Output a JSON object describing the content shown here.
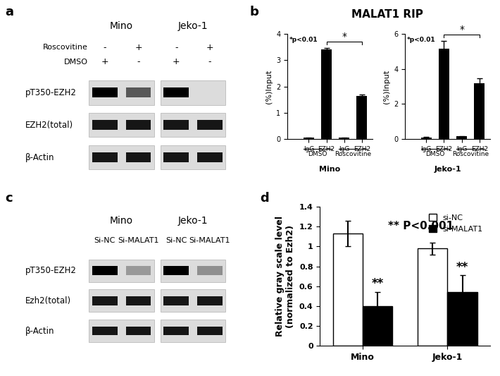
{
  "panel_labels": [
    "a",
    "b",
    "c",
    "d"
  ],
  "figure_title": "MALAT1 RIP",
  "blots": [
    {
      "groups": [
        {
          "name": "Mino"
        },
        {
          "name": "Jeko-1"
        }
      ],
      "conditions": [
        {
          "label": "Roscovitine",
          "marks": [
            [
              "-",
              "+"
            ],
            [
              "-",
              "+"
            ]
          ]
        },
        {
          "label": "DMSO",
          "marks": [
            [
              "+",
              "-"
            ],
            [
              "+",
              "-"
            ]
          ]
        }
      ],
      "bands": [
        {
          "label": "pT350-EZH2",
          "intensity": [
            [
              1.0,
              0.6
            ],
            [
              1.0,
              0.0
            ]
          ]
        },
        {
          "label": "EZH2(total)",
          "intensity": [
            [
              0.9,
              0.9
            ],
            [
              0.9,
              0.9
            ]
          ]
        },
        {
          "label": "β-Actin",
          "intensity": [
            [
              0.9,
              0.9
            ],
            [
              0.9,
              0.9
            ]
          ]
        }
      ]
    },
    {
      "groups": [
        {
          "name": "Mino",
          "lane_labels": [
            "Si-NC",
            "Si-MALAT1"
          ]
        },
        {
          "name": "Jeko-1",
          "lane_labels": [
            "Si-NC",
            "Si-MALAT1"
          ]
        }
      ],
      "conditions": [],
      "bands": [
        {
          "label": "pT350-EZH2",
          "intensity": [
            [
              1.0,
              0.3
            ],
            [
              1.0,
              0.35
            ]
          ]
        },
        {
          "label": "Ezh2(total)",
          "intensity": [
            [
              0.9,
              0.9
            ],
            [
              0.9,
              0.9
            ]
          ]
        },
        {
          "label": "β-Actin",
          "intensity": [
            [
              0.9,
              0.9
            ],
            [
              0.9,
              0.9
            ]
          ]
        }
      ]
    }
  ],
  "chart_data": [
    {
      "type": "bar",
      "x_label": "Mino",
      "y_label": "(%)Input",
      "categories": [
        "IgG",
        "EZH2",
        "IgG",
        "EZH2"
      ],
      "x_groups": [
        "DMSO",
        "Roscovitine"
      ],
      "values": [
        0.05,
        3.42,
        0.05,
        1.63
      ],
      "errors": [
        0.01,
        0.05,
        0.01,
        0.06
      ],
      "color": "#000000",
      "ylim": [
        0,
        4
      ],
      "yticks": [
        0,
        1,
        2,
        3,
        4
      ],
      "annotations": [
        "*p<0.01"
      ],
      "significance_label": "*"
    },
    {
      "type": "bar",
      "x_label": "Jeko-1",
      "y_label": "(%)Input",
      "categories": [
        "IgG",
        "EZH2",
        "IgG",
        "EZH2"
      ],
      "x_groups": [
        "DMSO",
        "Roscovitine"
      ],
      "values": [
        0.1,
        5.15,
        0.15,
        3.2
      ],
      "errors": [
        0.02,
        0.45,
        0.02,
        0.25
      ],
      "color": "#000000",
      "ylim": [
        0,
        6
      ],
      "yticks": [
        0,
        2,
        4,
        6
      ],
      "annotations": [
        "*p<0.01"
      ],
      "significance_label": "*"
    },
    {
      "type": "bar",
      "y_label": "Relative gray scale level\n(normalized to Ezh2)",
      "categories": [
        "Mino",
        "Jeko-1"
      ],
      "series": [
        {
          "name": "si-NC",
          "color": "#ffffff",
          "values": [
            1.13,
            0.98
          ],
          "errors": [
            0.13,
            0.06
          ]
        },
        {
          "name": "si-MALAT1",
          "color": "#000000",
          "values": [
            0.4,
            0.54
          ],
          "errors": [
            0.14,
            0.17
          ]
        }
      ],
      "ylim": [
        0,
        1.4
      ],
      "yticks": [
        0,
        0.2,
        0.4,
        0.6,
        0.8,
        1,
        1.2,
        1.4
      ],
      "legend": "upper right",
      "annotations": [
        "** P<0.001"
      ],
      "significance_label": "**"
    }
  ]
}
